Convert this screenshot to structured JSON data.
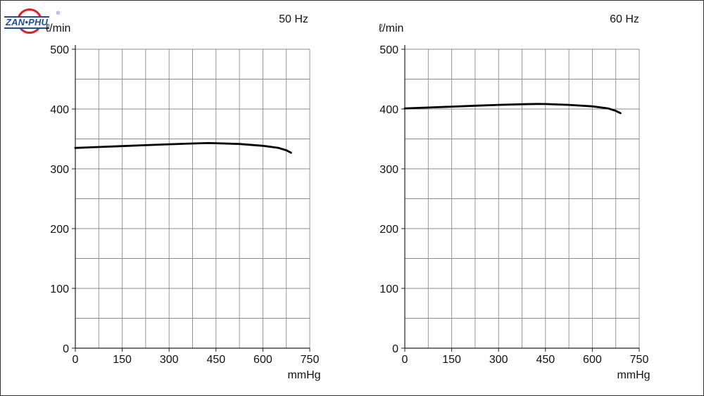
{
  "brand": {
    "logo_text": "ZAN•PHU",
    "logo_reg": "®"
  },
  "chart_data": [
    {
      "type": "line",
      "title": "50 Hz",
      "xlabel": "mmHg",
      "ylabel": "ℓ/min",
      "xlim": [
        0,
        750
      ],
      "ylim": [
        0,
        500
      ],
      "x_ticks": [
        0,
        150,
        300,
        450,
        600,
        750
      ],
      "y_ticks": [
        0,
        100,
        200,
        300,
        400,
        500
      ],
      "grid": true,
      "series": [
        {
          "x": [
            0,
            75,
            150,
            225,
            300,
            375,
            425,
            450,
            525,
            600,
            650,
            675,
            690
          ],
          "y": [
            335,
            336.5,
            338,
            339.5,
            341,
            342.3,
            343,
            342.8,
            341.5,
            338.5,
            335,
            331,
            327
          ]
        }
      ]
    },
    {
      "type": "line",
      "title": "60 Hz",
      "xlabel": "mmHg",
      "ylabel": "ℓ/min",
      "xlim": [
        0,
        750
      ],
      "ylim": [
        0,
        500
      ],
      "x_ticks": [
        0,
        150,
        300,
        450,
        600,
        750
      ],
      "y_ticks": [
        0,
        100,
        200,
        300,
        400,
        500
      ],
      "grid": true,
      "series": [
        {
          "x": [
            0,
            75,
            150,
            225,
            300,
            375,
            425,
            450,
            525,
            600,
            650,
            675,
            690
          ],
          "y": [
            401,
            402.5,
            404,
            405.5,
            407,
            408,
            408.5,
            408.3,
            407,
            404.5,
            401,
            397,
            393
          ]
        }
      ]
    }
  ]
}
